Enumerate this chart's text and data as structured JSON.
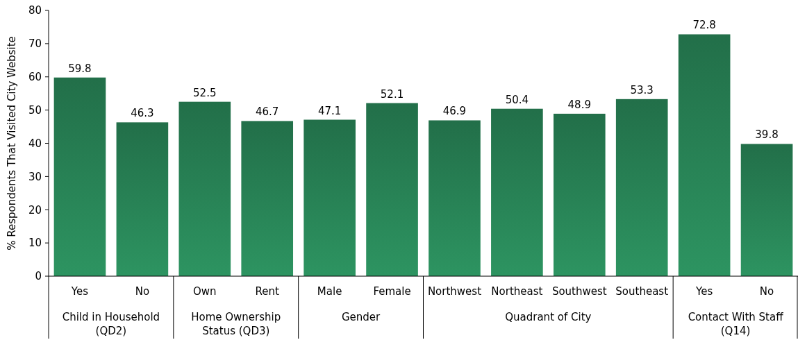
{
  "chart_data": {
    "type": "bar",
    "ylabel": "% Respondents That Visited City Website",
    "categories": [
      "Yes",
      "No",
      "Own",
      "Rent",
      "Male",
      "Female",
      "Northwest",
      "Northeast",
      "Southwest",
      "Southeast",
      "Yes",
      "No"
    ],
    "values": [
      59.8,
      46.3,
      52.5,
      46.7,
      47.1,
      52.1,
      46.9,
      50.4,
      48.9,
      53.3,
      72.8,
      39.8
    ],
    "color": "#2a8a5a",
    "ylim": [
      0,
      80
    ],
    "yticks": [
      0,
      10,
      20,
      30,
      40,
      50,
      60,
      70,
      80
    ],
    "grid": false,
    "data_labels": true,
    "annotations": [
      "Child in Household (QD2)",
      "Home Ownership Status (QD3)",
      "Gender",
      "Quadrant of City",
      "Contact With Staff (Q14)"
    ]
  }
}
